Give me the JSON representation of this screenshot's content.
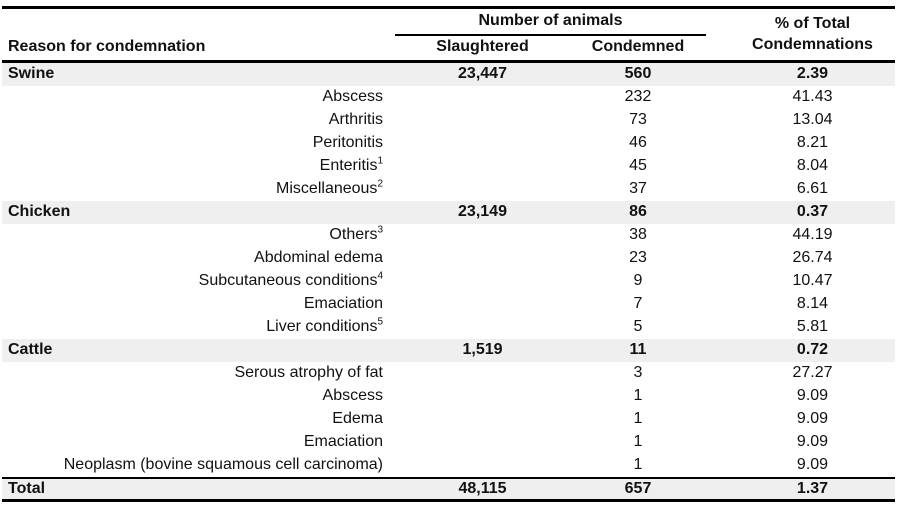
{
  "table": {
    "header": {
      "reason": "Reason for condemnation",
      "number_group": "Number of animals",
      "slaughtered": "Slaughtered",
      "condemned": "Condemned",
      "pct_line1": "% of Total",
      "pct_line2": "Condemnations"
    },
    "sections": [
      {
        "name": "Swine",
        "slaughtered": "23,447",
        "condemned": "560",
        "pct": "2.39",
        "items": [
          {
            "label": "Abscess",
            "sup": "",
            "condemned": "232",
            "pct": "41.43"
          },
          {
            "label": "Arthritis",
            "sup": "",
            "condemned": "73",
            "pct": "13.04"
          },
          {
            "label": "Peritonitis",
            "sup": "",
            "condemned": "46",
            "pct": "8.21"
          },
          {
            "label": "Enteritis",
            "sup": "1",
            "condemned": "45",
            "pct": "8.04"
          },
          {
            "label": "Miscellaneous",
            "sup": "2",
            "condemned": "37",
            "pct": "6.61"
          }
        ]
      },
      {
        "name": "Chicken",
        "slaughtered": "23,149",
        "condemned": "86",
        "pct": "0.37",
        "items": [
          {
            "label": "Others",
            "sup": "3",
            "condemned": "38",
            "pct": "44.19"
          },
          {
            "label": "Abdominal edema",
            "sup": "",
            "condemned": "23",
            "pct": "26.74"
          },
          {
            "label": "Subcutaneous conditions",
            "sup": "4",
            "condemned": "9",
            "pct": "10.47"
          },
          {
            "label": "Emaciation",
            "sup": "",
            "condemned": "7",
            "pct": "8.14"
          },
          {
            "label": "Liver conditions",
            "sup": "5",
            "condemned": "5",
            "pct": "5.81"
          }
        ]
      },
      {
        "name": "Cattle",
        "slaughtered": "1,519",
        "condemned": "11",
        "pct": "0.72",
        "items": [
          {
            "label": "Serous atrophy of fat",
            "sup": "",
            "condemned": "3",
            "pct": "27.27"
          },
          {
            "label": "Abscess",
            "sup": "",
            "condemned": "1",
            "pct": "9.09"
          },
          {
            "label": "Edema",
            "sup": "",
            "condemned": "1",
            "pct": "9.09"
          },
          {
            "label": "Emaciation",
            "sup": "",
            "condemned": "1",
            "pct": "9.09"
          },
          {
            "label": "Neoplasm (bovine squamous cell carcinoma)",
            "sup": "",
            "condemned": "1",
            "pct": "9.09"
          }
        ]
      }
    ],
    "total": {
      "name": "Total",
      "slaughtered": "48,115",
      "condemned": "657",
      "pct": "1.37"
    },
    "colors": {
      "band_bg": "#efefef",
      "rule": "#000000",
      "text": "#111111"
    }
  }
}
